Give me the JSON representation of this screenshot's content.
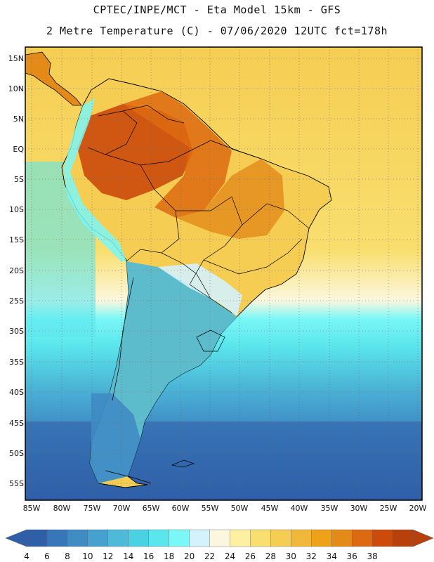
{
  "header": {
    "line1": "CPTEC/INPE/MCT -  Eta Model 15km - GFS",
    "line2": "2 Metre Temperature (C) - 07/06/2020 12UTC fct=178h"
  },
  "map": {
    "lat_labels": [
      "15N",
      "10N",
      "5N",
      "EQ",
      "5S",
      "10S",
      "15S",
      "20S",
      "25S",
      "30S",
      "35S",
      "40S",
      "45S",
      "50S",
      "55S"
    ],
    "lon_labels": [
      "85W",
      "80W",
      "75W",
      "70W",
      "65W",
      "60W",
      "55W",
      "50W",
      "45W",
      "40W",
      "35W",
      "30W",
      "25W",
      "20W"
    ]
  },
  "colorbar": {
    "labels": [
      "4",
      "6",
      "8",
      "10",
      "12",
      "14",
      "16",
      "18",
      "20",
      "22",
      "24",
      "26",
      "28",
      "30",
      "32",
      "34",
      "36",
      "38"
    ],
    "colors": [
      "#2f5fa8",
      "#3776b8",
      "#3f8bc4",
      "#46a0d0",
      "#4dbad9",
      "#4ad2e2",
      "#5ae6ec",
      "#7af7f7",
      "#d4f2fb",
      "#fbf7df",
      "#fdf0a0",
      "#f9df6f",
      "#f5cd52",
      "#efb83a",
      "#eda21a",
      "#e48a18",
      "#dd6a10",
      "#cc4a0a",
      "#b8400a"
    ],
    "under_color": "#2f5fa8",
    "over_color": "#b8400a"
  }
}
